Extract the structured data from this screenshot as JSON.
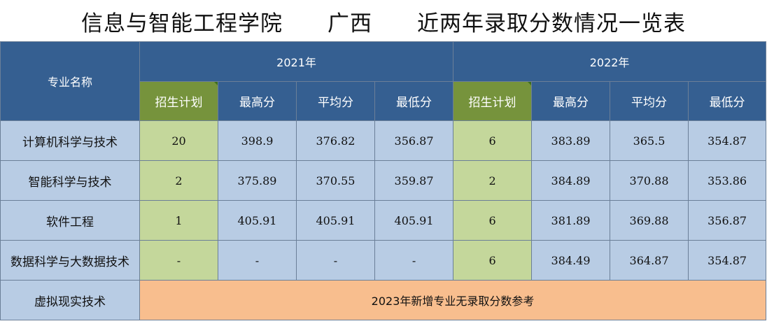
{
  "title": {
    "college": "信息与智能工程学院",
    "region": "广西",
    "table_name": "近两年录取分数情况一览表"
  },
  "headers": {
    "major": "专业名称",
    "year_2021": "2021年",
    "year_2022": "2022年",
    "plan": "招生计划",
    "max": "最高分",
    "avg": "平均分",
    "min": "最低分"
  },
  "rows": [
    {
      "major": "计算机科学与技术",
      "y2021": {
        "plan": "20",
        "max": "398.9",
        "avg": "376.82",
        "min": "356.87"
      },
      "y2022": {
        "plan": "6",
        "max": "383.89",
        "avg": "365.5",
        "min": "354.87"
      }
    },
    {
      "major": "智能科学与技术",
      "y2021": {
        "plan": "2",
        "max": "375.89",
        "avg": "370.55",
        "min": "359.87"
      },
      "y2022": {
        "plan": "2",
        "max": "384.89",
        "avg": "370.88",
        "min": "353.86"
      }
    },
    {
      "major": "软件工程",
      "y2021": {
        "plan": "1",
        "max": "405.91",
        "avg": "405.91",
        "min": "405.91"
      },
      "y2022": {
        "plan": "6",
        "max": "381.89",
        "avg": "369.88",
        "min": "356.87"
      }
    },
    {
      "major": "数据科学与大数据技术",
      "y2021": {
        "plan": "-",
        "max": "-",
        "avg": "-",
        "min": "-"
      },
      "y2022": {
        "plan": "6",
        "max": "384.49",
        "avg": "364.87",
        "min": "354.87"
      }
    }
  ],
  "last_row": {
    "major": "虚拟现实技术",
    "note": "2023年新增专业无录取分数参考"
  },
  "colors": {
    "header_blue": "#355f91",
    "plan_header_green": "#76933c",
    "plan_cell_green": "#c4d79b",
    "data_cell_blue": "#b8cce4",
    "note_orange": "#f8be8e"
  }
}
